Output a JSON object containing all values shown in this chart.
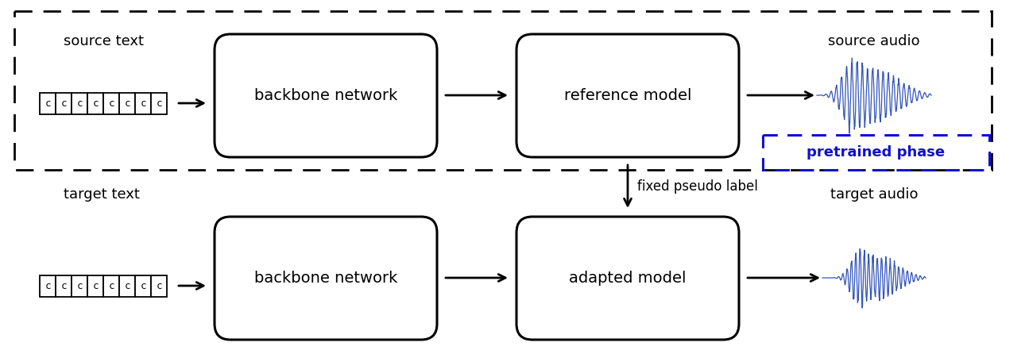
{
  "fig_width": 12.9,
  "fig_height": 4.46,
  "bg_color": "#ffffff",
  "text_color": "#000000",
  "blue_color": "#1111cc",
  "waveform_color": "#3355bb",
  "source_text_label": "source text",
  "target_text_label": "target text",
  "source_audio_label": "source audio",
  "target_audio_label": "target audio",
  "backbone_label": "backbone network",
  "reference_model_label": "reference model",
  "adapted_model_label": "adapted model",
  "pseudo_label": "fixed pseudo label",
  "pretrained_label": "pretrained phase"
}
